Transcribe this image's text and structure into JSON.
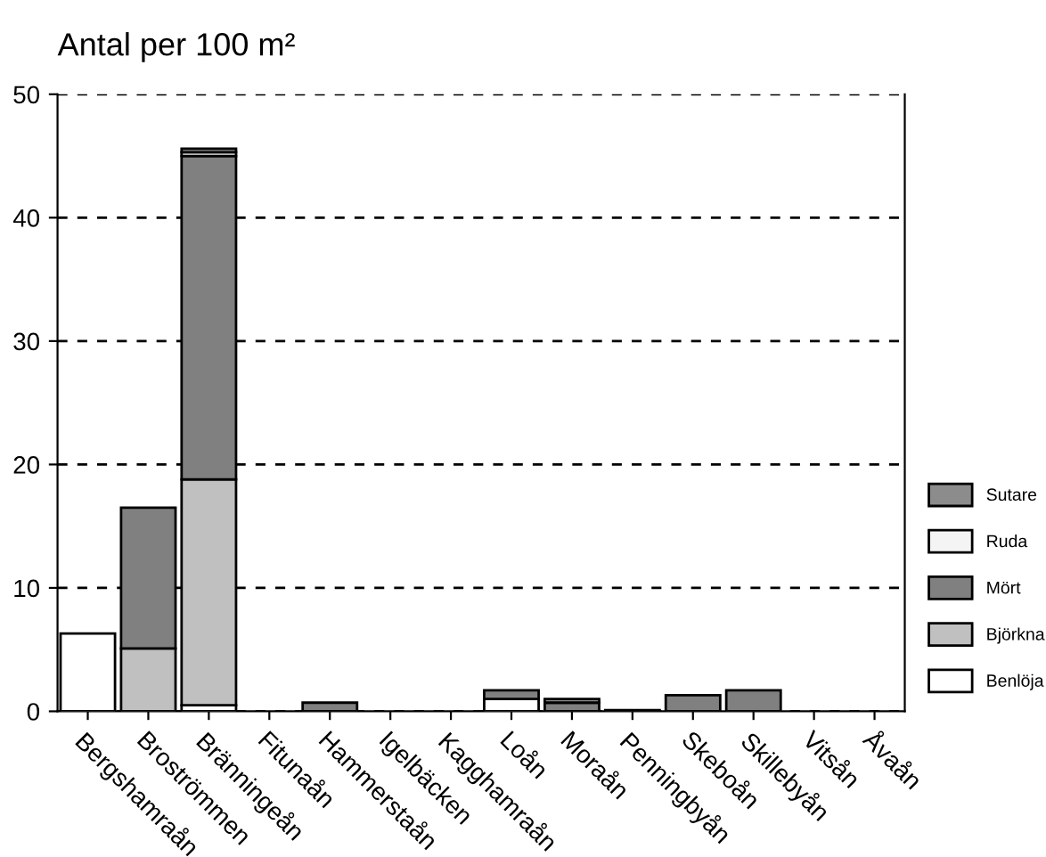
{
  "chart_data": {
    "type": "bar",
    "title": "Antal per 100 m²",
    "stacked": true,
    "categories": [
      "Bergshamraån",
      "Broströmmen",
      "Bränningeån",
      "Fitunaån",
      "Hammerstaån",
      "Igelbäcken",
      "Kagghamraån",
      "Loån",
      "Moraån",
      "Penningbyån",
      "Skeboån",
      "Skillebyån",
      "Vitsån",
      "Åvaån"
    ],
    "series": [
      {
        "name": "Benlöja",
        "color": "#ffffff",
        "values": [
          6.3,
          0,
          0.5,
          0,
          0,
          0,
          0,
          1.0,
          0,
          0,
          0,
          0,
          0,
          0
        ]
      },
      {
        "name": "Björkna",
        "color": "#c0c0c0",
        "values": [
          0,
          5.1,
          18.3,
          0,
          0,
          0,
          0,
          0,
          0,
          0,
          0,
          0,
          0,
          0
        ]
      },
      {
        "name": "Mört",
        "color": "#808080",
        "values": [
          0,
          11.4,
          26.2,
          0,
          0.7,
          0,
          0,
          0.7,
          0.7,
          0.1,
          1.3,
          1.7,
          0,
          0
        ]
      },
      {
        "name": "Ruda",
        "color": "#f4f4f4",
        "values": [
          0,
          0,
          0.3,
          0,
          0,
          0,
          0,
          0,
          0,
          0,
          0,
          0,
          0,
          0
        ]
      },
      {
        "name": "Sutare",
        "color": "#8c8c8c",
        "values": [
          0,
          0,
          0.3,
          0,
          0,
          0,
          0,
          0,
          0.3,
          0,
          0,
          0,
          0,
          0
        ]
      }
    ],
    "ylim": [
      0,
      50
    ],
    "yticks": [
      0,
      10,
      20,
      30,
      40,
      50
    ],
    "grid": "y",
    "legend": "right"
  }
}
